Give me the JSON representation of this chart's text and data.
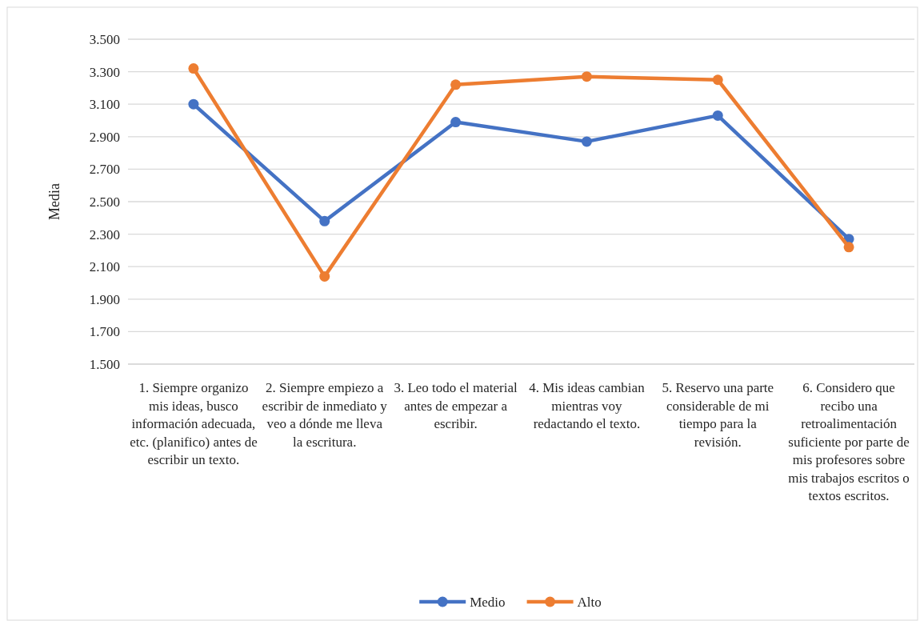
{
  "chart_data": {
    "type": "line",
    "ylabel": "Media",
    "categories": [
      "1. Siempre organizo mis ideas, busco información adecuada, etc. (planifico) antes de escribir un texto.",
      "2. Siempre empiezo a escribir de inmediato y veo a dónde me lleva la escritura.",
      "3. Leo todo el material antes de empezar a escribir.",
      "4. Mis ideas cambian mientras voy redactando el texto.",
      "5. Reservo una parte considerable de mi tiempo para la revisión.",
      "6. Considero que recibo una retroalimentación suficiente por parte de mis profesores sobre mis trabajos escritos o textos escritos."
    ],
    "series": [
      {
        "name": "Medio",
        "color": "#4472c4",
        "values": [
          3.1,
          2.38,
          2.99,
          2.87,
          3.03,
          2.27
        ]
      },
      {
        "name": "Alto",
        "color": "#ed7d31",
        "values": [
          3.32,
          2.04,
          3.22,
          3.27,
          3.25,
          2.22
        ]
      }
    ],
    "ylim": [
      1.5,
      3.5
    ],
    "yticks": [
      {
        "value": 1.5,
        "label": "1.500"
      },
      {
        "value": 1.7,
        "label": "1.700"
      },
      {
        "value": 1.9,
        "label": "1.900"
      },
      {
        "value": 2.1,
        "label": "2.100"
      },
      {
        "value": 2.3,
        "label": "2.300"
      },
      {
        "value": 2.5,
        "label": "2.500"
      },
      {
        "value": 2.7,
        "label": "2.700"
      },
      {
        "value": 2.9,
        "label": "2.900"
      },
      {
        "value": 3.1,
        "label": "3.100"
      },
      {
        "value": 3.3,
        "label": "3.300"
      },
      {
        "value": 3.5,
        "label": "3.500"
      }
    ],
    "grid": "y",
    "legend": "bottom",
    "marker": "circle",
    "line_style": "solid"
  }
}
